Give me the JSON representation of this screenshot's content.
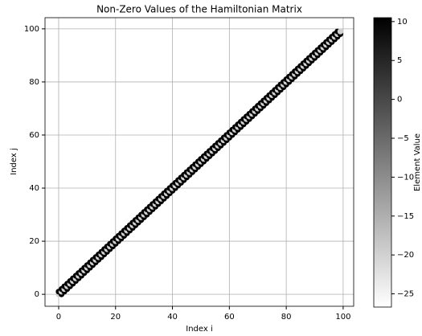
{
  "chart_data": {
    "type": "scatter",
    "title": "Non-Zero Values of the Hamiltonian Matrix",
    "xlabel": "Index i",
    "ylabel": "Index j",
    "colorbar_label": "Element Value",
    "colormap": "Greys",
    "xlim": [
      -4.8,
      103.7
    ],
    "ylim": [
      -4.5,
      104.2
    ],
    "xticks": [
      0,
      20,
      40,
      60,
      80,
      100
    ],
    "yticks": [
      0,
      20,
      40,
      60,
      80,
      100
    ],
    "clim": [
      -26.7,
      10.5
    ],
    "cticks": [
      10,
      5,
      0,
      {
        "value": -5,
        "label": "−5"
      },
      {
        "value": -10,
        "label": "−10"
      },
      {
        "value": -15,
        "label": "−15"
      },
      {
        "value": -20,
        "label": "−20"
      },
      {
        "value": -25,
        "label": "−25"
      }
    ],
    "grid": true,
    "x": [
      0,
      0,
      1,
      1,
      1,
      2,
      2,
      2,
      3,
      3,
      3,
      4,
      4,
      4,
      5,
      5,
      5,
      6,
      6,
      6,
      7,
      7,
      7,
      8,
      8,
      8,
      9,
      9,
      9,
      10,
      10,
      10,
      11,
      11,
      11,
      12,
      12,
      12,
      13,
      13,
      13,
      14,
      14,
      14,
      15,
      15,
      15,
      16,
      16,
      16,
      17,
      17,
      17,
      18,
      18,
      18,
      19,
      19,
      19,
      20,
      20,
      20,
      21,
      21,
      21,
      22,
      22,
      22,
      23,
      23,
      23,
      24,
      24,
      24,
      25,
      25,
      25,
      26,
      26,
      26,
      27,
      27,
      27,
      28,
      28,
      28,
      29,
      29,
      29,
      30,
      30,
      30,
      31,
      31,
      31,
      32,
      32,
      32,
      33,
      33,
      33,
      34,
      34,
      34,
      35,
      35,
      35,
      36,
      36,
      36,
      37,
      37,
      37,
      38,
      38,
      38,
      39,
      39,
      39,
      40,
      40,
      40,
      41,
      41,
      41,
      42,
      42,
      42,
      43,
      43,
      43,
      44,
      44,
      44,
      45,
      45,
      45,
      46,
      46,
      46,
      47,
      47,
      47,
      48,
      48,
      48,
      49,
      49,
      49,
      50,
      50,
      50,
      51,
      51,
      51,
      52,
      52,
      52,
      53,
      53,
      53,
      54,
      54,
      54,
      55,
      55,
      55,
      56,
      56,
      56,
      57,
      57,
      57,
      58,
      58,
      58,
      59,
      59,
      59,
      60,
      60,
      60,
      61,
      61,
      61,
      62,
      62,
      62,
      63,
      63,
      63,
      64,
      64,
      64,
      65,
      65,
      65,
      66,
      66,
      66,
      67,
      67,
      67,
      68,
      68,
      68,
      69,
      69,
      69,
      70,
      70,
      70,
      71,
      71,
      71,
      72,
      72,
      72,
      73,
      73,
      73,
      74,
      74,
      74,
      75,
      75,
      75,
      76,
      76,
      76,
      77,
      77,
      77,
      78,
      78,
      78,
      79,
      79,
      79,
      80,
      80,
      80,
      81,
      81,
      81,
      82,
      82,
      82,
      83,
      83,
      83,
      84,
      84,
      84,
      85,
      85,
      85,
      86,
      86,
      86,
      87,
      87,
      87,
      88,
      88,
      88,
      89,
      89,
      89,
      90,
      90,
      90,
      91,
      91,
      91,
      92,
      92,
      92,
      93,
      93,
      93,
      94,
      94,
      94,
      95,
      95,
      95,
      96,
      96,
      96,
      97,
      97,
      97,
      98,
      98,
      98,
      99,
      99
    ],
    "y": [
      0,
      1,
      0,
      1,
      2,
      1,
      2,
      3,
      2,
      3,
      4,
      3,
      4,
      5,
      4,
      5,
      6,
      5,
      6,
      7,
      6,
      7,
      8,
      7,
      8,
      9,
      8,
      9,
      10,
      9,
      10,
      11,
      10,
      11,
      12,
      11,
      12,
      13,
      12,
      13,
      14,
      13,
      14,
      15,
      14,
      15,
      16,
      15,
      16,
      17,
      16,
      17,
      18,
      17,
      18,
      19,
      18,
      19,
      20,
      19,
      20,
      21,
      20,
      21,
      22,
      21,
      22,
      23,
      22,
      23,
      24,
      23,
      24,
      25,
      24,
      25,
      26,
      25,
      26,
      27,
      26,
      27,
      28,
      27,
      28,
      29,
      28,
      29,
      30,
      29,
      30,
      31,
      30,
      31,
      32,
      31,
      32,
      33,
      32,
      33,
      34,
      33,
      34,
      35,
      34,
      35,
      36,
      35,
      36,
      37,
      36,
      37,
      38,
      37,
      38,
      39,
      38,
      39,
      40,
      39,
      40,
      41,
      40,
      41,
      42,
      41,
      42,
      43,
      42,
      43,
      44,
      43,
      44,
      45,
      44,
      45,
      46,
      45,
      46,
      47,
      46,
      47,
      48,
      47,
      48,
      49,
      48,
      49,
      50,
      49,
      50,
      51,
      50,
      51,
      52,
      51,
      52,
      53,
      52,
      53,
      54,
      53,
      54,
      55,
      54,
      55,
      56,
      55,
      56,
      57,
      56,
      57,
      58,
      57,
      58,
      59,
      58,
      59,
      60,
      59,
      60,
      61,
      60,
      61,
      62,
      61,
      62,
      63,
      62,
      63,
      64,
      63,
      64,
      65,
      64,
      65,
      66,
      65,
      66,
      67,
      66,
      67,
      68,
      67,
      68,
      69,
      68,
      69,
      70,
      69,
      70,
      71,
      70,
      71,
      72,
      71,
      72,
      73,
      72,
      73,
      74,
      73,
      74,
      75,
      74,
      75,
      76,
      75,
      76,
      77,
      76,
      77,
      78,
      77,
      78,
      79,
      78,
      79,
      80,
      79,
      80,
      81,
      80,
      81,
      82,
      81,
      82,
      83,
      82,
      83,
      84,
      83,
      84,
      85,
      84,
      85,
      86,
      85,
      86,
      87,
      86,
      87,
      88,
      87,
      88,
      89,
      88,
      89,
      90,
      89,
      90,
      91,
      90,
      91,
      92,
      91,
      92,
      93,
      92,
      93,
      94,
      93,
      94,
      95,
      94,
      95,
      96,
      95,
      96,
      97,
      96,
      97,
      98,
      97,
      98,
      99,
      98,
      99
    ],
    "c": [
      -20,
      10,
      10,
      -20,
      10,
      10,
      -20,
      10,
      10,
      -20,
      10,
      10,
      -20,
      10,
      10,
      -20,
      10,
      10,
      -20,
      10,
      10,
      -20,
      10,
      10,
      -20,
      10,
      10,
      -20,
      10,
      10,
      -20,
      10,
      10,
      -20,
      10,
      10,
      -20,
      10,
      10,
      -20,
      10,
      10,
      -20,
      10,
      10,
      -20,
      10,
      10,
      -20,
      10,
      10,
      -20,
      10,
      10,
      -20,
      10,
      10,
      -20,
      10,
      10,
      -20,
      10,
      10,
      -20,
      10,
      10,
      -20,
      10,
      10,
      -20,
      10,
      10,
      -20,
      10,
      10,
      -20,
      10,
      10,
      -20,
      10,
      10,
      -20,
      10,
      10,
      -20,
      10,
      10,
      -20,
      10,
      10,
      -20,
      10,
      10,
      -20,
      10,
      10,
      -20,
      10,
      10,
      -20,
      10,
      10,
      -20,
      10,
      10,
      -20,
      10,
      10,
      -20,
      10,
      10,
      -20,
      10,
      10,
      -20,
      10,
      10,
      -20,
      10,
      10,
      -20,
      10,
      10,
      -20,
      10,
      10,
      -20,
      10,
      10,
      -20,
      10,
      10,
      -20,
      10,
      10,
      -20,
      10,
      10,
      -20,
      10,
      10,
      -20,
      10,
      10,
      -20,
      10,
      10,
      -20,
      10,
      10,
      -20,
      10,
      10,
      -20,
      10,
      10,
      -20,
      10,
      10,
      -20,
      10,
      10,
      -20,
      10,
      10,
      -20,
      10,
      10,
      -20,
      10,
      10,
      -20,
      10,
      10,
      -20,
      10,
      10,
      -20,
      10,
      10,
      -20,
      10,
      10,
      -20,
      10,
      10,
      -20,
      10,
      10,
      -20,
      10,
      10,
      -20,
      10,
      10,
      -20,
      10,
      10,
      -20,
      10,
      10,
      -20,
      10,
      10,
      -20,
      10,
      10,
      -20,
      10,
      10,
      -20,
      10,
      10,
      -20,
      10,
      10,
      -20,
      10,
      10,
      -20,
      10,
      10,
      -20,
      10,
      10,
      -20,
      10,
      10,
      -20,
      10,
      10,
      -20,
      10,
      10,
      -20,
      10,
      10,
      -20,
      10,
      10,
      -20,
      10,
      10,
      -20,
      10,
      10,
      -20,
      10,
      10,
      -20,
      10,
      10,
      -20,
      10,
      10,
      -20,
      10,
      10,
      -20,
      10,
      10,
      -20,
      10,
      10,
      -20,
      10,
      10,
      -20,
      10,
      10,
      -20,
      10,
      10,
      -20,
      10,
      10,
      -20,
      10,
      10,
      -20,
      10,
      10,
      -20,
      10,
      10,
      -20,
      10,
      10,
      -20,
      10,
      10,
      -20,
      10,
      10,
      -20,
      10,
      10,
      -20,
      10,
      10,
      -20,
      10,
      10,
      -20,
      10,
      10,
      -20,
      10,
      10,
      -20,
      10,
      10,
      -20,
      10,
      10,
      -20,
      10,
      10,
      -20,
      10,
      10,
      -20,
      10,
      10,
      -20,
      10,
      10,
      -20
    ]
  }
}
